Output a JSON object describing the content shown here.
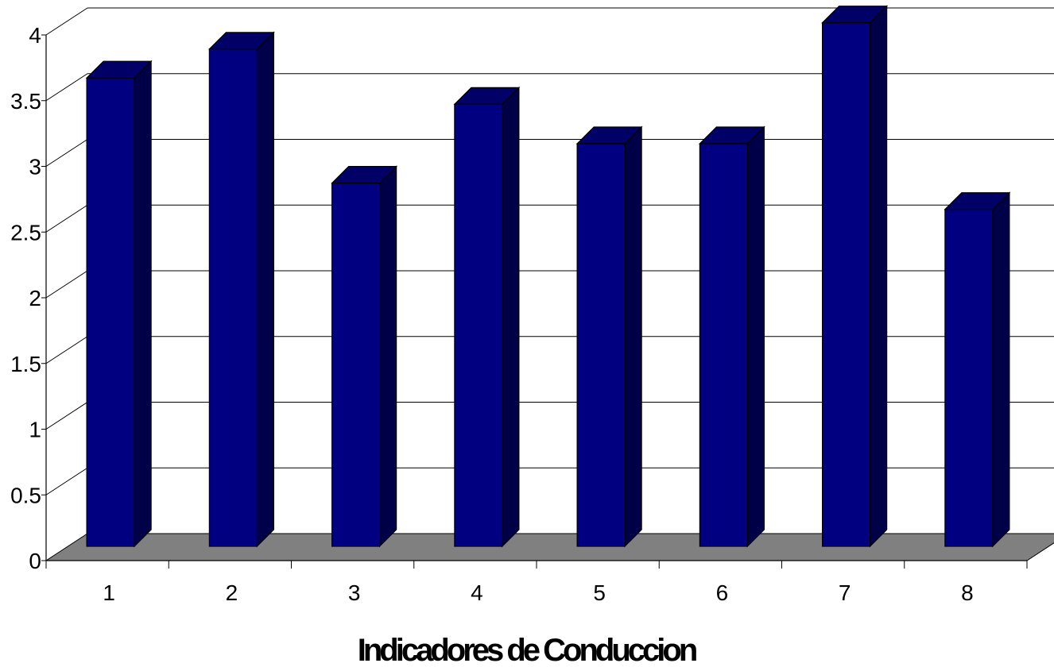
{
  "chart_data": {
    "type": "bar",
    "style": "3d-column",
    "categories": [
      "1",
      "2",
      "3",
      "4",
      "5",
      "6",
      "7",
      "8"
    ],
    "values": [
      3.6,
      3.82,
      2.8,
      3.4,
      3.1,
      3.1,
      4.02,
      2.6
    ],
    "title": "",
    "xlabel": "Indicadores de Conduccion",
    "ylabel": "",
    "ylim": [
      0,
      4
    ],
    "yticks": [
      "0",
      "0.5",
      "1",
      "1.5",
      "2",
      "2.5",
      "3",
      "3.5",
      "4"
    ],
    "grid": true,
    "legend": "none",
    "colors": {
      "bar_front": "#000080",
      "bar_side": "#000048",
      "bar_top": "#000066",
      "floor": "#808080",
      "gridline": "#000000"
    }
  }
}
